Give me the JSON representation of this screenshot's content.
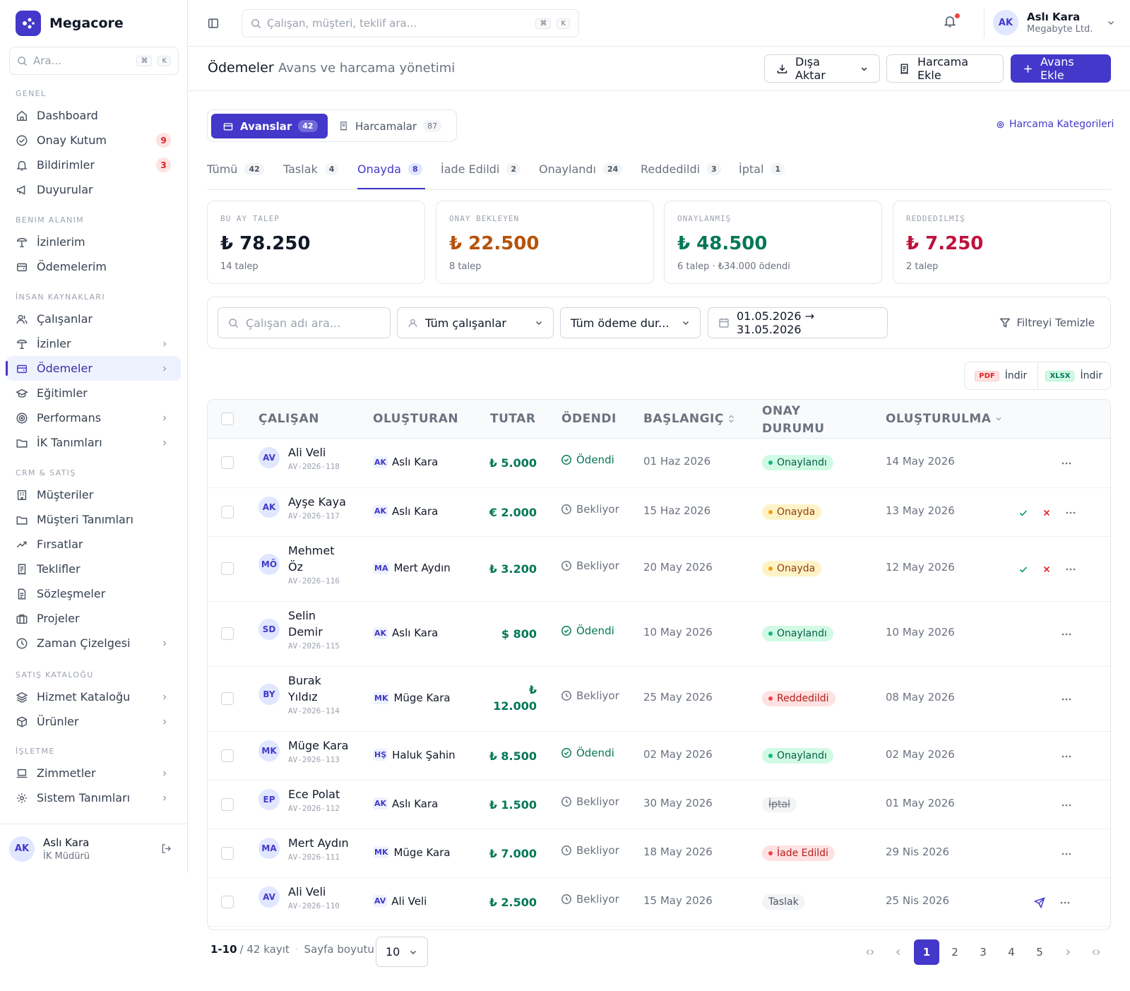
{
  "brand": {
    "name": "Megacore"
  },
  "sidebar": {
    "search_placeholder": "Ara...",
    "kbd1": "⌘",
    "kbd2": "K",
    "sections": {
      "genel": "GENEL",
      "benim": "BENIM ALANIM",
      "ik": "İNSAN KAYNAKLARI",
      "crm": "CRM & SATIŞ",
      "katalog": "SATIŞ KATALOĞU",
      "isletme": "İŞLETME"
    },
    "items": {
      "dashboard": "Dashboard",
      "onay": "Onay Kutum",
      "onay_badge": "9",
      "bildirimler": "Bildirimler",
      "bildirimler_badge": "3",
      "duyurular": "Duyurular",
      "izinlerim": "İzinlerim",
      "odemelerim": "Ödemelerim",
      "calisanlar": "Çalışanlar",
      "izinler": "İzinler",
      "odemeler": "Ödemeler",
      "egitimler": "Eğitimler",
      "performans": "Performans",
      "ik_tanimlari": "İK Tanımları",
      "musteriler": "Müşteriler",
      "musteri_tanimlari": "Müşteri Tanımları",
      "firsatlar": "Fırsatlar",
      "teklifler": "Teklifler",
      "sozlesmeler": "Sözleşmeler",
      "projeler": "Projeler",
      "zaman": "Zaman Çizelgesi",
      "hizmet": "Hizmet Kataloğu",
      "urunler": "Ürünler",
      "zimmetler": "Zimmetler",
      "sistem": "Sistem Tanımları"
    },
    "user": {
      "initials": "AK",
      "name": "Aslı Kara",
      "role": "İK Müdürü"
    }
  },
  "topbar": {
    "search_placeholder": "Çalışan, müşteri, teklif ara...",
    "kbd1": "⌘",
    "kbd2": "K",
    "user": {
      "initials": "AK",
      "name": "Aslı Kara",
      "company": "Megabyte Ltd."
    }
  },
  "header": {
    "title": "Ödemeler",
    "subtitle": "Avans ve harcama yönetimi",
    "export": "Dışa Aktar",
    "add_expense": "Harcama Ekle",
    "add_advance": "Avans Ekle"
  },
  "segments": {
    "avanslar": "Avanslar",
    "avanslar_count": "42",
    "harcamalar": "Harcamalar",
    "harcamalar_count": "87",
    "categories_link": "Harcama Kategorileri"
  },
  "tabs": [
    {
      "label": "Tümü",
      "count": "42"
    },
    {
      "label": "Taslak",
      "count": "4"
    },
    {
      "label": "Onayda",
      "count": "8"
    },
    {
      "label": "İade Edildi",
      "count": "2"
    },
    {
      "label": "Onaylandı",
      "count": "24"
    },
    {
      "label": "Reddedildi",
      "count": "3"
    },
    {
      "label": "İptal",
      "count": "1"
    }
  ],
  "kpis": [
    {
      "label": "BU AY TALEP",
      "value": "₺ 78.250",
      "sub": "14 talep",
      "color": "#111827"
    },
    {
      "label": "ONAY BEKLEYEN",
      "value": "₺ 22.500",
      "sub": "8 talep",
      "color": "#b45309"
    },
    {
      "label": "ONAYLANMIŞ",
      "value": "₺ 48.500",
      "sub": "6 talep · ₺34.000 ödendi",
      "color": "#047857"
    },
    {
      "label": "REDDEDILMIŞ",
      "value": "₺ 7.250",
      "sub": "2 talep",
      "color": "#be123c"
    }
  ],
  "filters": {
    "search_placeholder": "Çalışan adı ara...",
    "employee": "Tüm çalışanlar",
    "payment_status": "Tüm ödeme dur...",
    "date_range": "01.05.2026 → 31.05.2026",
    "clear": "Filtreyi Temizle"
  },
  "export_bar": {
    "pdf_tag": "PDF",
    "pdf_label": "İndir",
    "xlsx_tag": "XLSX",
    "xlsx_label": "İndir"
  },
  "table": {
    "headers": {
      "employee": "ÇALIŞAN",
      "creator": "OLUŞTURAN",
      "amount": "TUTAR",
      "paid": "ÖDENDI",
      "start": "BAŞLANGIÇ",
      "approval_1": "ONAY",
      "approval_2": "DURUMU",
      "created": "OLUŞTURULMA"
    },
    "rows": [
      {
        "initials": "AV",
        "name1": "Ali Veli",
        "name2": "",
        "id": "AV-2026-118",
        "creator_initials": "AK",
        "creator": "Aslı Kara",
        "amount1": "₺ 5.000",
        "amount2": "",
        "paid": "Ödendi",
        "paid_state": "ok",
        "start": "01 Haz 2026",
        "status": "Onaylandı",
        "status_class": "st-onaylandi",
        "created": "14 May 2026",
        "actions": "more"
      },
      {
        "initials": "AK",
        "name1": "Ayşe Kaya",
        "name2": "",
        "id": "AV-2026-117",
        "creator_initials": "AK",
        "creator": "Aslı Kara",
        "amount1": "€ 2.000",
        "amount2": "",
        "paid": "Bekliyor",
        "paid_state": "wait",
        "start": "15 Haz 2026",
        "status": "Onayda",
        "status_class": "st-onayda",
        "created": "13 May 2026",
        "actions": "approve"
      },
      {
        "initials": "MÖ",
        "name1": "Mehmet",
        "name2": "Öz",
        "id": "AV-2026-116",
        "creator_initials": "MA",
        "creator": "Mert Aydın",
        "amount1": "₺ 3.200",
        "amount2": "",
        "paid": "Bekliyor",
        "paid_state": "wait",
        "start": "20 May 2026",
        "status": "Onayda",
        "status_class": "st-onayda",
        "created": "12 May 2026",
        "actions": "approve"
      },
      {
        "initials": "SD",
        "name1": "Selin",
        "name2": "Demir",
        "id": "AV-2026-115",
        "creator_initials": "AK",
        "creator": "Aslı Kara",
        "amount1": "$ 800",
        "amount2": "",
        "paid": "Ödendi",
        "paid_state": "ok",
        "start": "10 May 2026",
        "status": "Onaylandı",
        "status_class": "st-onaylandi",
        "created": "10 May 2026",
        "actions": "more"
      },
      {
        "initials": "BY",
        "name1": "Burak",
        "name2": "Yıldız",
        "id": "AV-2026-114",
        "creator_initials": "MK",
        "creator": "Müge Kara",
        "amount1": "₺",
        "amount2": "12.000",
        "paid": "Bekliyor",
        "paid_state": "wait",
        "start": "25 May 2026",
        "status": "Reddedildi",
        "status_class": "st-red",
        "created": "08 May 2026",
        "actions": "more"
      },
      {
        "initials": "MK",
        "name1": "Müge Kara",
        "name2": "",
        "id": "AV-2026-113",
        "creator_initials": "HŞ",
        "creator": "Haluk Şahin",
        "amount1": "₺ 8.500",
        "amount2": "",
        "paid": "Ödendi",
        "paid_state": "ok",
        "start": "02 May 2026",
        "status": "Onaylandı",
        "status_class": "st-onaylandi",
        "created": "02 May 2026",
        "actions": "more"
      },
      {
        "initials": "EP",
        "name1": "Ece Polat",
        "name2": "",
        "id": "AV-2026-112",
        "creator_initials": "AK",
        "creator": "Aslı Kara",
        "amount1": "₺ 1.500",
        "amount2": "",
        "paid": "Bekliyor",
        "paid_state": "wait",
        "start": "30 May 2026",
        "status": "İptal",
        "status_class": "st-iptal",
        "created": "01 May 2026",
        "actions": "more"
      },
      {
        "initials": "MA",
        "name1": "Mert Aydın",
        "name2": "",
        "id": "AV-2026-111",
        "creator_initials": "MK",
        "creator": "Müge Kara",
        "amount1": "₺ 7.000",
        "amount2": "",
        "paid": "Bekliyor",
        "paid_state": "wait",
        "start": "18 May 2026",
        "status": "İade Edildi",
        "status_class": "st-red",
        "created": "29 Nis 2026",
        "actions": "more"
      },
      {
        "initials": "AV",
        "name1": "Ali Veli",
        "name2": "",
        "id": "AV-2026-110",
        "creator_initials": "AV",
        "creator": "Ali Veli",
        "amount1": "₺ 2.500",
        "amount2": "",
        "paid": "Bekliyor",
        "paid_state": "wait",
        "start": "15 May 2026",
        "status": "Taslak",
        "status_class": "st-taslak",
        "created": "25 Nis 2026",
        "actions": "send"
      }
    ]
  },
  "pagination": {
    "range": "1-10",
    "total": "/ 42 kayıt",
    "size_label": "Sayfa boyutu",
    "size": "10",
    "pages": [
      "1",
      "2",
      "3",
      "4",
      "5"
    ],
    "current": "1"
  }
}
